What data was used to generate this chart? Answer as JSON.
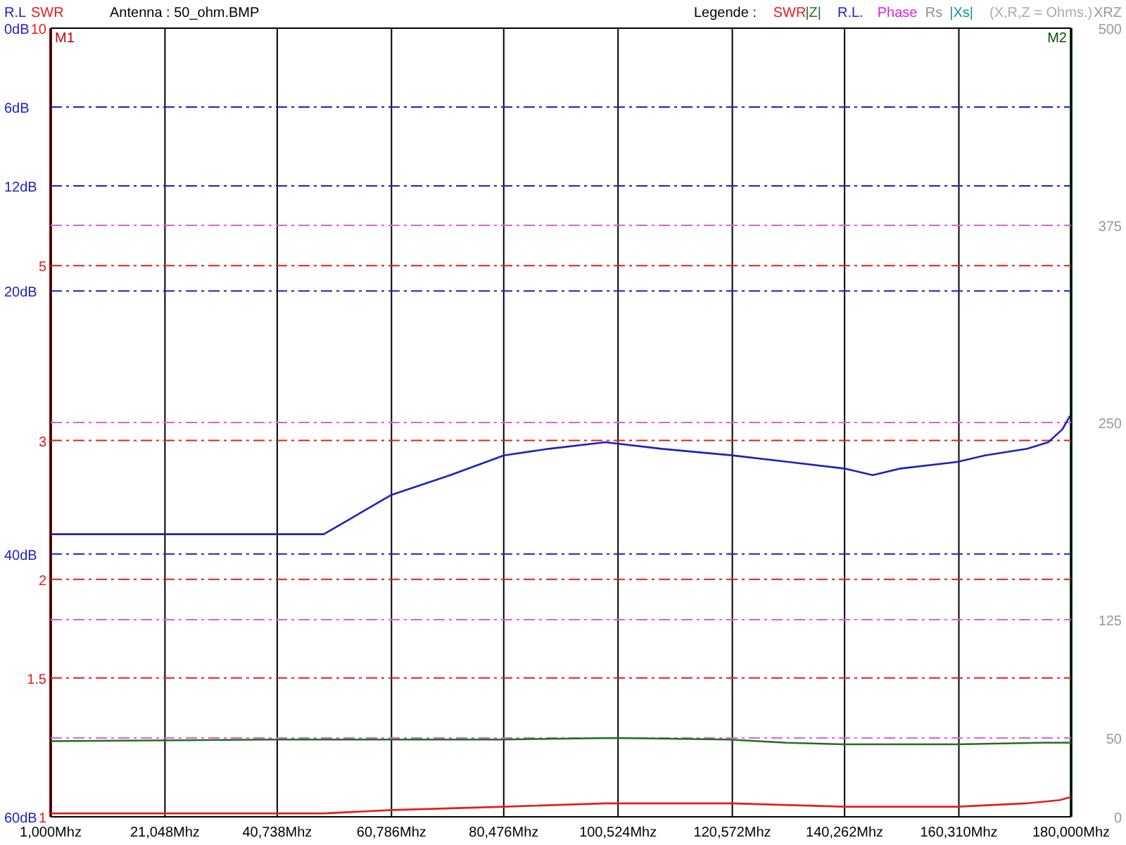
{
  "chart_data": {
    "type": "line",
    "title": "Antenna : 50_ohm.BMP",
    "ylabel": "SWR",
    "y2label": "XRZ",
    "y3label": "R.L",
    "legend_title": "Legende :",
    "annotations": [
      "(X,R,Z = Ohms.)",
      "M1",
      "M2"
    ],
    "xlim": [
      1000,
      180000
    ],
    "xticks": [
      {
        "value": 1000,
        "label": "1,000Mhz"
      },
      {
        "value": 21048,
        "label": "21,048Mhz"
      },
      {
        "value": 40738,
        "label": "40,738Mhz"
      },
      {
        "value": 60786,
        "label": "60,786Mhz"
      },
      {
        "value": 80476,
        "label": "80,476Mhz"
      },
      {
        "value": 100524,
        "label": "100,524Mhz"
      },
      {
        "value": 120572,
        "label": "120,572Mhz"
      },
      {
        "value": 140262,
        "label": "140,262Mhz"
      },
      {
        "value": 160310,
        "label": "160,310Mhz"
      },
      {
        "value": 180000,
        "label": "180,000Mhz"
      }
    ],
    "ylim": [
      1,
      10
    ],
    "yticks": [
      1,
      1.5,
      2,
      3,
      5,
      10
    ],
    "log": "y",
    "y2lim": [
      0,
      500
    ],
    "y2ticks": [
      0,
      50,
      125,
      250,
      375,
      500
    ],
    "y3lim": [
      60,
      0
    ],
    "y3ticks": [
      {
        "value": 0,
        "label": "0dB"
      },
      {
        "value": 6,
        "label": "6dB"
      },
      {
        "value": 12,
        "label": "12dB"
      },
      {
        "value": 20,
        "label": "20dB"
      },
      {
        "value": 40,
        "label": "40dB"
      },
      {
        "value": 60,
        "label": "60dB"
      }
    ],
    "grid": true,
    "legend": "top right",
    "line_style": "solid",
    "marker": "none",
    "series": [
      {
        "name": "SWR",
        "color": "#e02020",
        "axis": "y",
        "x": [
          1000,
          48900,
          60800,
          80500,
          98300,
          110000,
          120500,
          140200,
          160000,
          172000,
          178000,
          180000
        ],
        "values": [
          1.01,
          1.01,
          1.02,
          1.03,
          1.04,
          1.04,
          1.04,
          1.03,
          1.03,
          1.04,
          1.05,
          1.06
        ]
      },
      {
        "name": "|Z|",
        "color": "#207020",
        "axis": "y2",
        "x": [
          1000,
          40000,
          80000,
          100000,
          120000,
          130000,
          140000,
          160000,
          175000,
          180000
        ],
        "values": [
          48,
          49,
          49,
          50,
          49,
          47,
          46,
          46,
          47,
          47
        ]
      },
      {
        "name": "R.L.",
        "color": "#2020c0",
        "axis": "y3",
        "x": [
          1000,
          48900,
          60800,
          71100,
          80500,
          88400,
          98300,
          108200,
          120500,
          130400,
          140200,
          145200,
          150100,
          160000,
          164900,
          172300,
          176000,
          178500,
          179800
        ],
        "values": [
          38.5,
          38.5,
          35.5,
          34,
          32.5,
          32,
          31.5,
          32,
          32.5,
          33,
          33.5,
          34,
          33.5,
          33,
          32.5,
          32,
          31.5,
          30.5,
          29.5
        ]
      },
      {
        "name": "Phase",
        "color": "#e020e0",
        "axis": "y2"
      },
      {
        "name": "Rs",
        "color": "#909090",
        "axis": "y2"
      },
      {
        "name": "|Xs|",
        "color": "#109090",
        "axis": "y2"
      }
    ]
  }
}
